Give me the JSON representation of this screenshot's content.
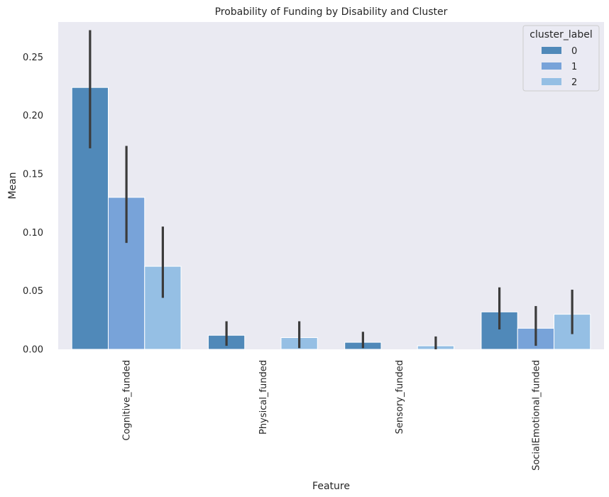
{
  "chart_data": {
    "type": "bar",
    "title": "Probability of Funding by Disability and Cluster",
    "xlabel": "Feature",
    "ylabel": "Mean",
    "categories": [
      "Cognitive_funded",
      "Physical_funded",
      "Sensory_funded",
      "SocialEmotional_funded"
    ],
    "series": [
      {
        "name": "0",
        "color": "#5089b9",
        "values": [
          0.224,
          0.012,
          0.006,
          0.032
        ],
        "err_low": [
          0.172,
          0.003,
          0.001,
          0.017
        ],
        "err_high": [
          0.273,
          0.024,
          0.015,
          0.053
        ]
      },
      {
        "name": "1",
        "color": "#78a3d9",
        "values": [
          0.13,
          0.0,
          0.0,
          0.018
        ],
        "err_low": [
          0.091,
          0.0,
          0.0,
          0.003
        ],
        "err_high": [
          0.174,
          0.0,
          0.0,
          0.037
        ]
      },
      {
        "name": "2",
        "color": "#95bfe4",
        "values": [
          0.071,
          0.01,
          0.003,
          0.03
        ],
        "err_low": [
          0.044,
          0.001,
          0.0,
          0.013
        ],
        "err_high": [
          0.105,
          0.024,
          0.011,
          0.051
        ]
      }
    ],
    "ylim": [
      0,
      0.28
    ],
    "yticks": [
      "0.00",
      "0.05",
      "0.10",
      "0.15",
      "0.20",
      "0.25"
    ],
    "legend": {
      "title": "cluster_label",
      "position": "top-right"
    },
    "grid": false
  }
}
